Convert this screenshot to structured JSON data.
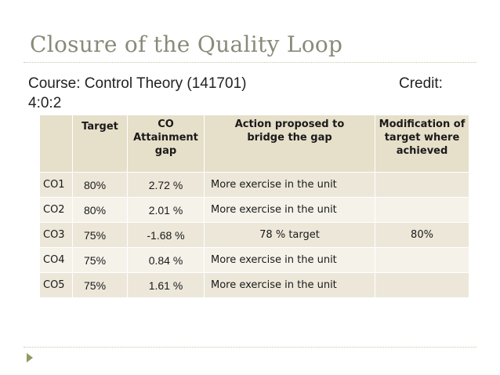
{
  "title": "Closure of the Quality Loop",
  "course": {
    "label": "Course: Control Theory (141701)",
    "credit_label": "Credit:",
    "credit_value": "4:0:2"
  },
  "table": {
    "headers": [
      "",
      "Target",
      "CO Attainment gap",
      "Action proposed to bridge the gap",
      "Modification of target where achieved"
    ],
    "rows": [
      {
        "co": "CO1",
        "target": "80%",
        "gap": "2.72 %",
        "action": "More exercise in the unit",
        "modification": ""
      },
      {
        "co": "CO2",
        "target": "80%",
        "gap": "2.01 %",
        "action": "More exercise in the unit",
        "modification": ""
      },
      {
        "co": "CO3",
        "target": "75%",
        "gap": "-1.68 %",
        "action": "78 % target",
        "modification": "80%"
      },
      {
        "co": "CO4",
        "target": "75%",
        "gap": "0.84 %",
        "action": "More exercise in the unit",
        "modification": ""
      },
      {
        "co": "CO5",
        "target": "75%",
        "gap": "1.61 %",
        "action": "More exercise in the unit",
        "modification": ""
      }
    ]
  },
  "colors": {
    "header_bg": "#e6dfc9",
    "row_odd_bg": "#ece7d9",
    "row_even_bg": "#f5f2ea",
    "title_color": "#8a8a7a",
    "bullet_color": "#8f9a5e"
  },
  "icons": {
    "footer_bullet": "triangle-right-icon"
  }
}
